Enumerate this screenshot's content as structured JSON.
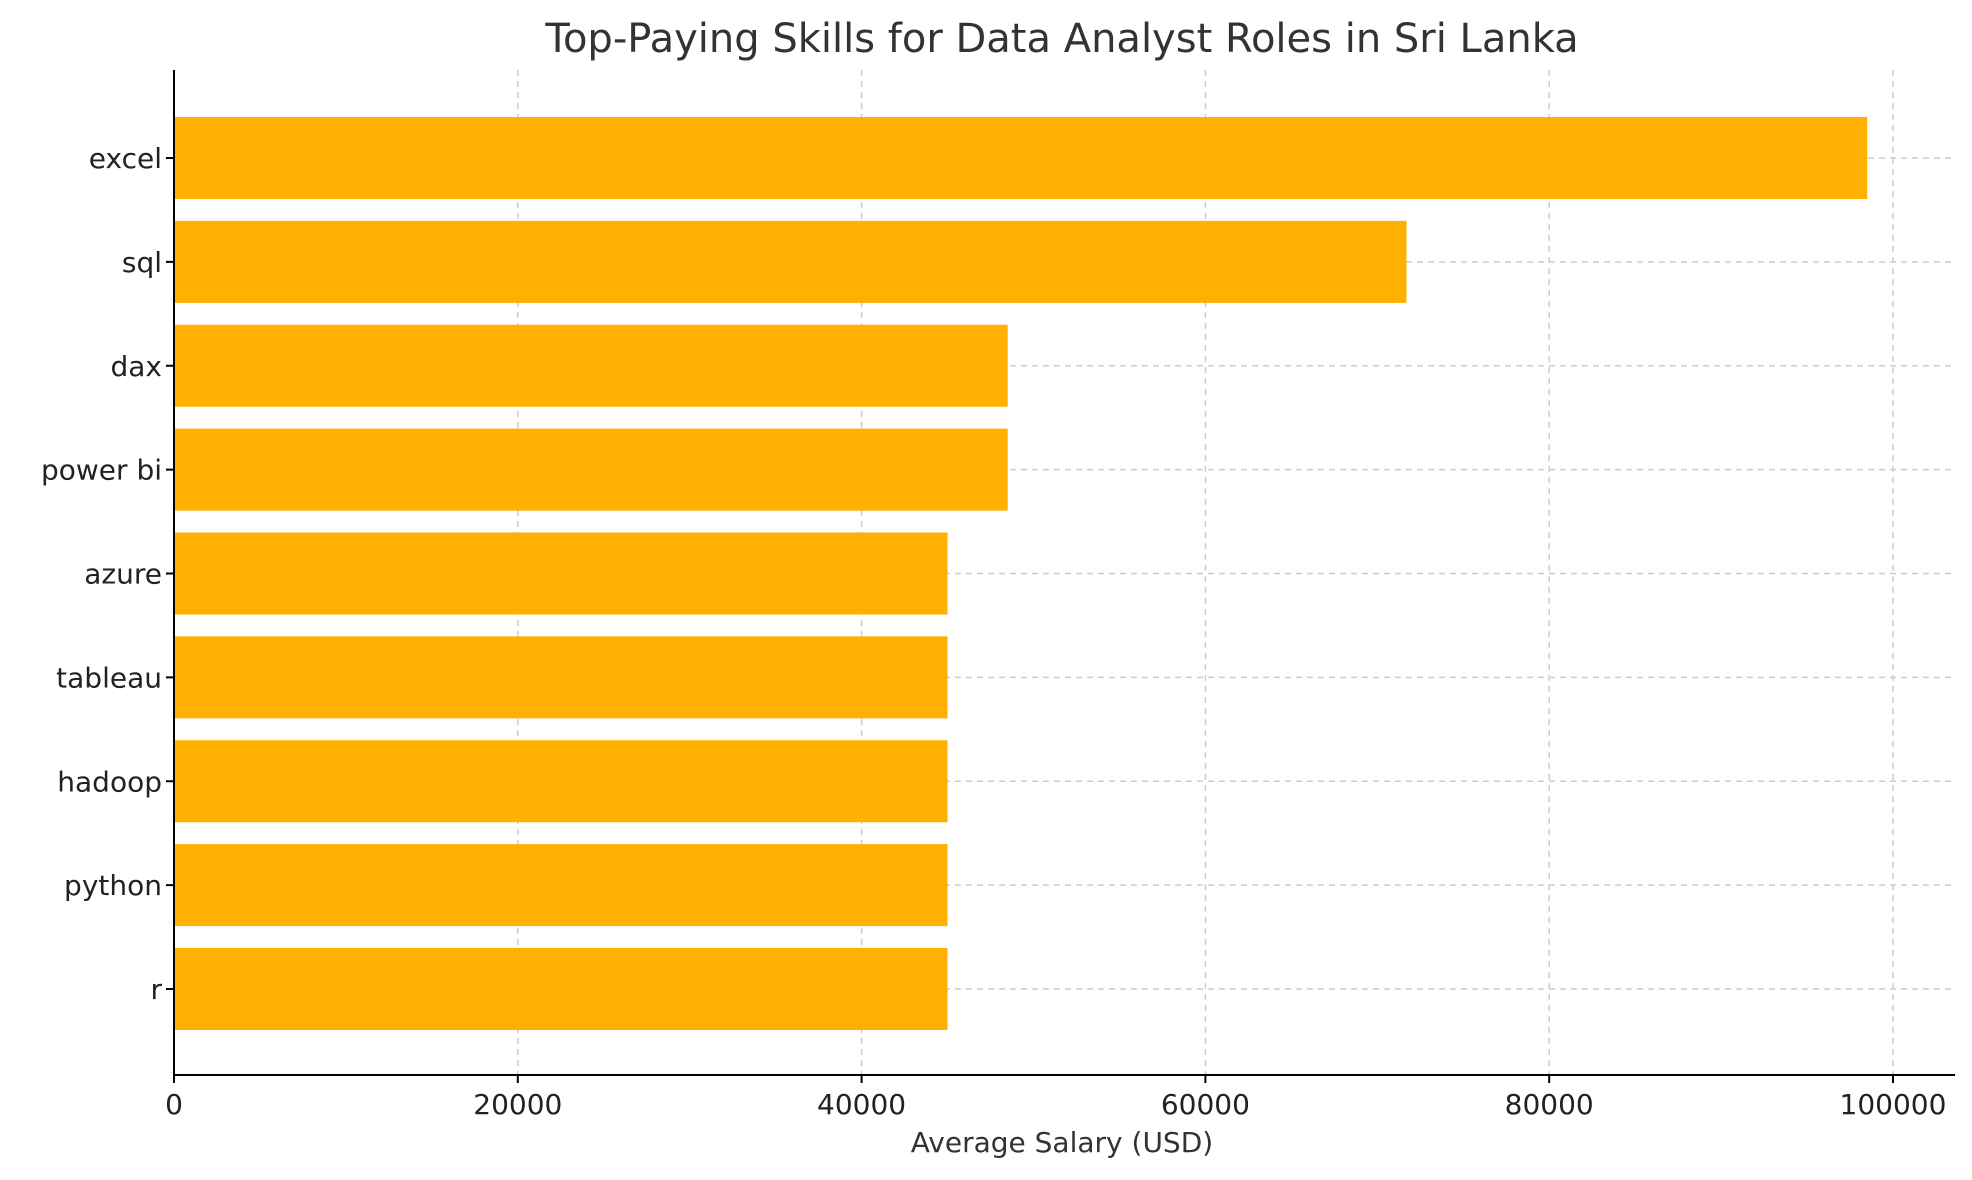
{
  "chart_data": {
    "type": "bar",
    "orientation": "horizontal",
    "title": "Top-Paying Skills for Data Analyst Roles in Sri Lanka",
    "xlabel": "Average Salary (USD)",
    "ylabel": "",
    "categories": [
      "excel",
      "sql",
      "dax",
      "power bi",
      "azure",
      "tableau",
      "hadoop",
      "python",
      "r"
    ],
    "values": [
      98500,
      71700,
      48500,
      48500,
      45000,
      45000,
      45000,
      45000,
      45000
    ],
    "xlim": [
      0,
      103500
    ],
    "xticks": [
      0,
      20000,
      40000,
      60000,
      80000,
      100000
    ],
    "xtick_labels": [
      "0",
      "20000",
      "40000",
      "60000",
      "80000",
      "100000"
    ],
    "grid": true,
    "bar_color": "#FFB000",
    "grid_color": "#cccccc"
  }
}
